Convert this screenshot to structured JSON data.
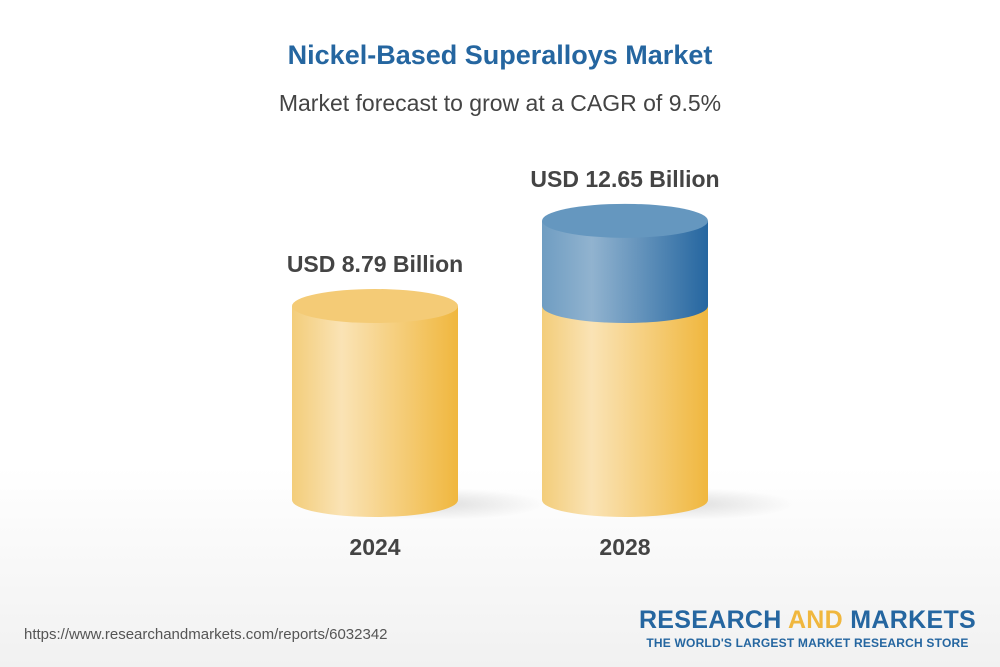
{
  "chart_data": {
    "type": "bar",
    "title": "Nickel-Based Superalloys Market",
    "subtitle": "Market forecast to grow at a CAGR of 9.5%",
    "categories": [
      "2024",
      "2028"
    ],
    "values": [
      8.79,
      12.65
    ],
    "data_labels": [
      "USD 8.79 Billion",
      "USD 12.65 Billion"
    ],
    "unit": "USD Billion",
    "style": "3d-cylinder",
    "colors": {
      "base": "#f0b73e",
      "growth": "#2566a0"
    }
  },
  "footer": {
    "url": "https://www.researchandmarkets.com/reports/6032342",
    "logo_part1": "RESEARCH ",
    "logo_part2": "AND",
    "logo_part3": " MARKETS",
    "logo_tagline": "THE WORLD'S LARGEST MARKET RESEARCH STORE"
  }
}
